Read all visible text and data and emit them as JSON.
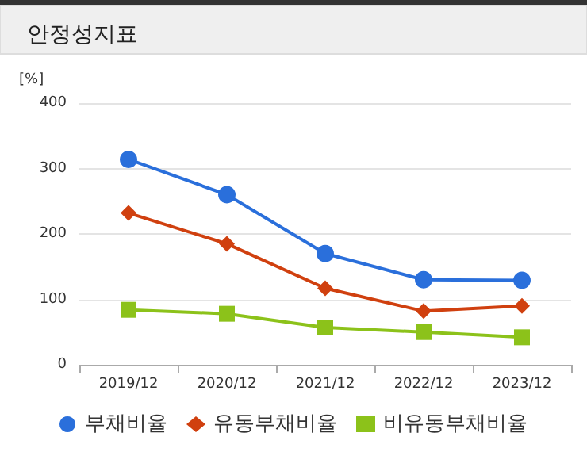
{
  "chart_data": {
    "type": "line",
    "title": "안정성지표",
    "ylabel": "[%]",
    "categories": [
      "2019/12",
      "2020/12",
      "2021/12",
      "2022/12",
      "2023/12"
    ],
    "series": [
      {
        "name": "부채비율",
        "color": "#2a6fdb",
        "marker": "circle",
        "values": [
          314,
          260,
          170,
          130,
          129
        ]
      },
      {
        "name": "유동부채비율",
        "color": "#d0400f",
        "marker": "diamond",
        "values": [
          232,
          185,
          117,
          82,
          90
        ]
      },
      {
        "name": "비유동부채비율",
        "color": "#8cc21a",
        "marker": "square",
        "values": [
          84,
          78,
          57,
          50,
          42
        ]
      }
    ],
    "ylim": [
      0,
      400
    ],
    "yticks": [
      0,
      100,
      200,
      300,
      400
    ],
    "grid": "y",
    "legend": "bottom"
  }
}
